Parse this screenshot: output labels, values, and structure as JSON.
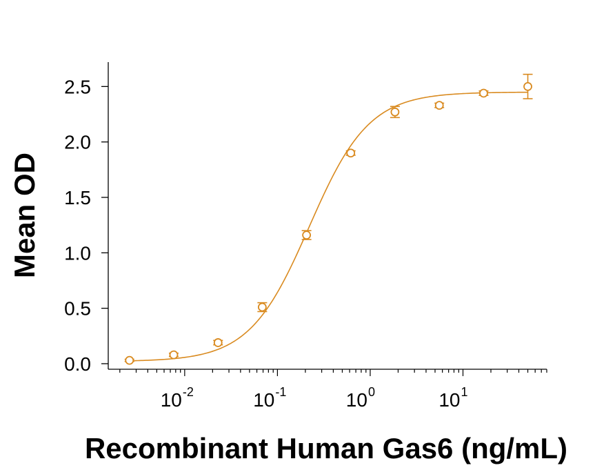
{
  "chart_data": {
    "type": "scatter",
    "xlabel": "Recombinant Human Gas6 (ng/mL)",
    "ylabel": "Mean OD",
    "x_scale": "log",
    "xlim": [
      0.0015,
      80
    ],
    "ylim": [
      -0.05,
      2.72
    ],
    "y_ticks": [
      0.0,
      0.5,
      1.0,
      1.5,
      2.0,
      2.5
    ],
    "y_tick_labels": [
      "0.0",
      "0.5",
      "1.0",
      "1.5",
      "2.0",
      "2.5"
    ],
    "x_major_ticks": [
      0.01,
      0.1,
      1,
      10
    ],
    "x_tick_labels": [
      {
        "base": "10",
        "exp": "-2"
      },
      {
        "base": "10",
        "exp": "-1"
      },
      {
        "base": "10",
        "exp": "0"
      },
      {
        "base": "10",
        "exp": "1"
      }
    ],
    "grid": false,
    "color": "#D98A1F",
    "series": [
      {
        "points": [
          {
            "x": 0.00254,
            "y": 0.03,
            "err": 0.01
          },
          {
            "x": 0.00762,
            "y": 0.08,
            "err": 0.015
          },
          {
            "x": 0.0229,
            "y": 0.19,
            "err": 0.02
          },
          {
            "x": 0.0686,
            "y": 0.51,
            "err": 0.04
          },
          {
            "x": 0.206,
            "y": 1.16,
            "err": 0.04
          },
          {
            "x": 0.617,
            "y": 1.9,
            "err": 0.02
          },
          {
            "x": 1.85,
            "y": 2.27,
            "err": 0.05
          },
          {
            "x": 5.56,
            "y": 2.33,
            "err": 0.02
          },
          {
            "x": 16.7,
            "y": 2.44,
            "err": 0.02
          },
          {
            "x": 50.0,
            "y": 2.5,
            "err": 0.11
          }
        ]
      }
    ],
    "fit_curve": {
      "model": "4PL",
      "bottom": 0.02,
      "top": 2.45,
      "ec50": 0.22,
      "hill": 1.35
    }
  }
}
